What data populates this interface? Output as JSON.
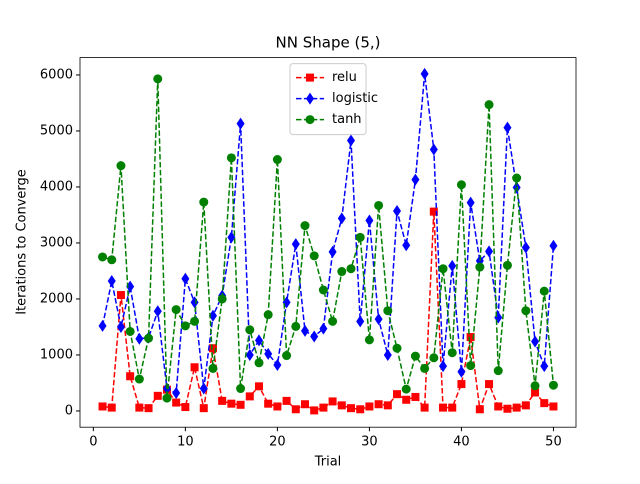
{
  "chart_data": {
    "type": "line",
    "title": "NN Shape (5,)",
    "xlabel": "Trial",
    "ylabel": "Iterations to Converge",
    "x": [
      1,
      2,
      3,
      4,
      5,
      6,
      7,
      8,
      9,
      10,
      11,
      12,
      13,
      14,
      15,
      16,
      17,
      18,
      19,
      20,
      21,
      22,
      23,
      24,
      25,
      26,
      27,
      28,
      29,
      30,
      31,
      32,
      33,
      34,
      35,
      36,
      37,
      38,
      39,
      40,
      41,
      42,
      43,
      44,
      45,
      46,
      47,
      48,
      49,
      50
    ],
    "series": [
      {
        "name": "relu",
        "color": "#ff0000",
        "marker": "square",
        "values": [
          80,
          60,
          2070,
          620,
          60,
          50,
          270,
          380,
          150,
          70,
          780,
          50,
          1120,
          180,
          130,
          110,
          260,
          440,
          130,
          80,
          180,
          30,
          120,
          10,
          60,
          170,
          100,
          50,
          30,
          80,
          120,
          100,
          300,
          200,
          250,
          60,
          3560,
          60,
          60,
          480,
          1320,
          30,
          480,
          80,
          40,
          60,
          100,
          330,
          140,
          80
        ]
      },
      {
        "name": "logistic",
        "color": "#0000ff",
        "marker": "diamond",
        "values": [
          1520,
          2320,
          1500,
          2220,
          1290,
          1310,
          1780,
          400,
          320,
          2360,
          1940,
          400,
          1700,
          2060,
          3100,
          5130,
          1000,
          1260,
          1020,
          820,
          1940,
          2980,
          1430,
          1330,
          1470,
          2840,
          3440,
          4830,
          1600,
          3400,
          1640,
          1000,
          3570,
          2960,
          4130,
          6020,
          4670,
          800,
          2590,
          700,
          3720,
          2680,
          2850,
          1670,
          5060,
          3990,
          2920,
          1240,
          800,
          2950
        ]
      },
      {
        "name": "tanh",
        "color": "#008000",
        "marker": "circle",
        "values": [
          2750,
          2700,
          4380,
          1420,
          570,
          1300,
          5930,
          230,
          1810,
          1520,
          1600,
          3730,
          760,
          2000,
          4520,
          400,
          1450,
          860,
          1720,
          4490,
          990,
          1510,
          3310,
          2770,
          2160,
          1600,
          2490,
          2540,
          3100,
          1270,
          3670,
          1790,
          1120,
          390,
          980,
          760,
          950,
          2540,
          1040,
          4040,
          810,
          2570,
          5470,
          720,
          2600,
          4160,
          1790,
          450,
          2140,
          460
        ]
      }
    ],
    "xlim": [
      -1.45,
      52.45
    ],
    "ylim": [
      -290,
      6310
    ],
    "xticks": [
      0,
      10,
      20,
      30,
      40,
      50
    ],
    "yticks": [
      0,
      1000,
      2000,
      3000,
      4000,
      5000,
      6000
    ],
    "line_style": "dashed",
    "legend": "upper center"
  }
}
